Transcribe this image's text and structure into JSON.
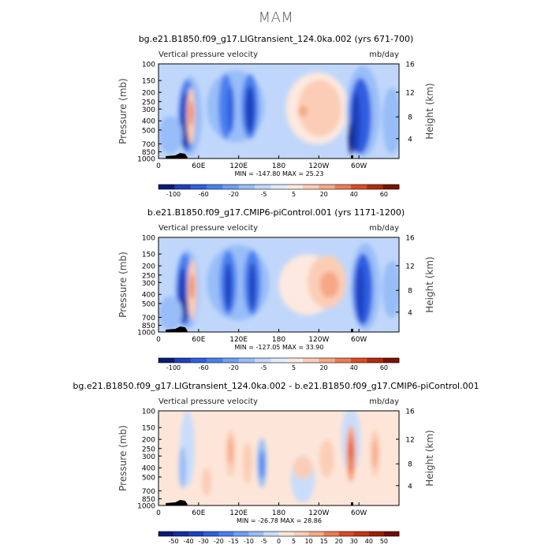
{
  "page": {
    "title": "MAM"
  },
  "chart_data": [
    {
      "type": "heatmap",
      "title": "bg.e21.B1850.f09_g17.LIGtransient_124.0ka.002 (yrs 671-700)",
      "left_label": "Vertical pressure velocity",
      "right_label": "mb/day",
      "ylabel": "Pressure (mb)",
      "y2label": "Height (km)",
      "yticks": [
        "100",
        "150",
        "200",
        "250",
        "300",
        "400",
        "500",
        "700",
        "850",
        "1000"
      ],
      "y2ticks": [
        "16",
        "12",
        "8",
        "4"
      ],
      "xticks": [
        "0",
        "60E",
        "120E",
        "180",
        "120W",
        "60W"
      ],
      "stats": "MIN = -147.80   MAX =  25.23",
      "colorbar": {
        "levels": [
          "-100",
          "-60",
          "-20",
          "-5",
          "5",
          "20",
          "40",
          "60"
        ],
        "colors": [
          "#0a1a78",
          "#1f3fbf",
          "#2f5fe0",
          "#4a7ff0",
          "#6f9ff5",
          "#98bdf8",
          "#c0d7fb",
          "#deeafd",
          "#fde9df",
          "#fbcdb6",
          "#f6a886",
          "#ee7a52",
          "#dc4a22",
          "#b32a0d",
          "#7a1205"
        ]
      },
      "overview": "Strong ascent (blue, negative) over 20E-40E, 80E-150E and 70W-30W; descent (red, positive) centred near 35E and across 180-110W in the mid troposphere."
    },
    {
      "type": "heatmap",
      "title": "b.e21.B1850.f09_g17.CMIP6-piControl.001 (yrs 1171-1200)",
      "left_label": "Vertical pressure velocity",
      "right_label": "mb/day",
      "ylabel": "Pressure (mb)",
      "y2label": "Height (km)",
      "yticks": [
        "100",
        "150",
        "200",
        "250",
        "300",
        "400",
        "500",
        "700",
        "850",
        "1000"
      ],
      "y2ticks": [
        "16",
        "12",
        "8",
        "4"
      ],
      "xticks": [
        "0",
        "60E",
        "120E",
        "180",
        "120W",
        "60W"
      ],
      "stats": "MIN = -127.05   MAX =  33.90",
      "colorbar": {
        "levels": [
          "-100",
          "-60",
          "-20",
          "-5",
          "5",
          "20",
          "40",
          "60"
        ],
        "colors": [
          "#0a1a78",
          "#1f3fbf",
          "#2f5fe0",
          "#4a7ff0",
          "#6f9ff5",
          "#98bdf8",
          "#c0d7fb",
          "#deeafd",
          "#fde9df",
          "#fbcdb6",
          "#f6a886",
          "#ee7a52",
          "#dc4a22",
          "#b32a0d",
          "#7a1205"
        ]
      },
      "overview": "Pattern similar to the upper panel with ascent over the Indian Ocean / West Pacific and South America, and descent east of 180."
    },
    {
      "type": "heatmap",
      "title": "bg.e21.B1850.f09_g17.LIGtransient_124.0ka.002 - b.e21.B1850.f09_g17.CMIP6-piControl.001",
      "left_label": "Vertical pressure velocity",
      "right_label": "mb/day",
      "ylabel": "Pressure (mb)",
      "y2label": "Height (km)",
      "yticks": [
        "100",
        "150",
        "200",
        "250",
        "300",
        "400",
        "500",
        "700",
        "850",
        "1000"
      ],
      "y2ticks": [
        "16",
        "12",
        "8",
        "4"
      ],
      "xticks": [
        "0",
        "60E",
        "120E",
        "180",
        "120W",
        "60W"
      ],
      "stats": "MIN = -26.78   MAX =  28.86",
      "colorbar": {
        "levels": [
          "-50",
          "-40",
          "-30",
          "-20",
          "-15",
          "-10",
          "-5",
          "0",
          "5",
          "10",
          "15",
          "20",
          "30",
          "40",
          "50"
        ],
        "colors": [
          "#0a1a78",
          "#162c9e",
          "#1f3fbf",
          "#2f5fe0",
          "#4a7ff0",
          "#6f9ff5",
          "#98bdf8",
          "#c9ddfb",
          "#fde6d9",
          "#fbcdb6",
          "#f6a886",
          "#ee7a52",
          "#dc4a22",
          "#c3360f",
          "#9c1f08",
          "#6e0f03"
        ]
      },
      "overview": "Differences mostly weak positive (light red); negative anomalies near 140E and 40E; strong positive anomaly near 55W."
    }
  ]
}
